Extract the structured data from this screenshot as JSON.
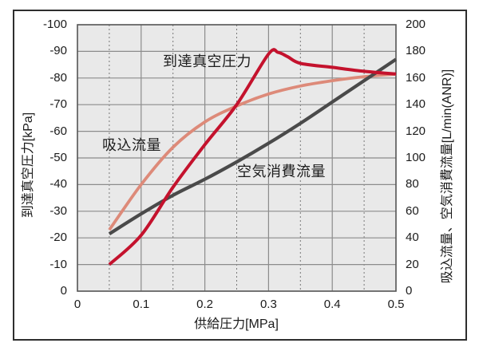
{
  "colors": {
    "plot_bg": "#e9e9e9",
    "grid_major": "#8c8c8c",
    "grid_minor": "#787878",
    "plot_border": "#555555",
    "outer_frame": "#2e2e2e",
    "series_vacuum": "#c4122d",
    "series_suction": "#dd8a79",
    "series_consumption": "#4a4a4a",
    "text": "#1b1b1b"
  },
  "chart_data": {
    "type": "line",
    "x_axis": {
      "label": "供給圧力[MPa]",
      "ticks": [
        0,
        0.1,
        0.2,
        0.3,
        0.4,
        0.5
      ],
      "tick_labels": [
        "0",
        "0.1",
        "0.2",
        "0.3",
        "0.4",
        "0.5"
      ],
      "minor_gridlines": [
        0.05,
        0.15,
        0.25,
        0.35,
        0.45
      ],
      "range": [
        0,
        0.5
      ]
    },
    "y_left": {
      "label": "到達真空圧力[kPa]",
      "ticks": [
        -100,
        -90,
        -80,
        -70,
        -60,
        -50,
        -40,
        -30,
        -20,
        -10,
        0
      ],
      "tick_labels": [
        "-100",
        "-90",
        "-80",
        "-70",
        "-60",
        "-50",
        "-40",
        "-30",
        "-20",
        "-10",
        "0"
      ],
      "range": [
        0,
        -100
      ],
      "grid": true
    },
    "y_right": {
      "label": "吸込流量、空気消費流量[L/min(ANR)]",
      "ticks": [
        200,
        180,
        160,
        140,
        120,
        100,
        80,
        60,
        40,
        20,
        0
      ],
      "tick_labels": [
        "200",
        "180",
        "160",
        "140",
        "120",
        "100",
        "80",
        "60",
        "40",
        "20",
        "0"
      ],
      "range": [
        0,
        200
      ]
    },
    "series": [
      {
        "name": "吸込流量",
        "axis": "right",
        "color_key": "series_suction",
        "stroke_width": 3.8,
        "x": [
          0.05,
          0.1,
          0.15,
          0.2,
          0.25,
          0.3,
          0.35,
          0.4,
          0.45,
          0.5
        ],
        "values": [
          46,
          80,
          108,
          127,
          139,
          148,
          154,
          158,
          161,
          163
        ]
      },
      {
        "name": "空気消費流量",
        "axis": "right",
        "color_key": "series_consumption",
        "stroke_width": 4.2,
        "x": [
          0.05,
          0.1,
          0.15,
          0.2,
          0.25,
          0.3,
          0.35,
          0.4,
          0.45,
          0.5
        ],
        "values": [
          43,
          58,
          72,
          84,
          97,
          111,
          126,
          142,
          158,
          174
        ]
      },
      {
        "name": "到達真空圧力",
        "axis": "left",
        "color_key": "series_vacuum",
        "stroke_width": 4,
        "x": [
          0.05,
          0.1,
          0.15,
          0.2,
          0.25,
          0.3,
          0.315,
          0.33,
          0.35,
          0.4,
          0.45,
          0.5
        ],
        "values": [
          -10,
          -21,
          -39,
          -55,
          -70,
          -89,
          -89.6,
          -88,
          -85.5,
          -84,
          -82.5,
          -81.5
        ]
      }
    ],
    "legend_position": "on-chart-annotations",
    "grid_on": true
  }
}
